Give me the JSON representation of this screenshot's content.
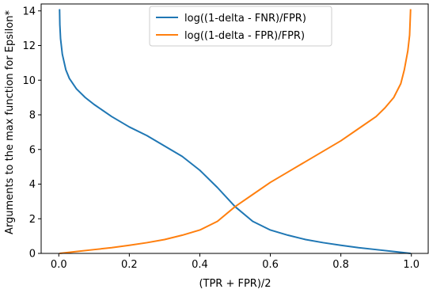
{
  "chart_data": {
    "type": "line",
    "title": "",
    "xlabel": "(TPR + FPR)/2",
    "ylabel": "Arguments to the max function for Epsilon*",
    "xlim": [
      -0.05,
      1.05
    ],
    "ylim": [
      0,
      14.4
    ],
    "xticks": [
      0.0,
      0.2,
      0.4,
      0.6,
      0.8,
      1.0
    ],
    "xtick_labels": [
      "0.0",
      "0.2",
      "0.4",
      "0.6",
      "0.8",
      "1.0"
    ],
    "yticks": [
      0,
      2,
      4,
      6,
      8,
      10,
      12,
      14
    ],
    "ytick_labels": [
      "0",
      "2",
      "4",
      "6",
      "8",
      "10",
      "12",
      "14"
    ],
    "grid": false,
    "legend_position": "top-center",
    "series": [
      {
        "name": "log((1-delta - FNR)/FPR)",
        "color": "#1f77b4",
        "points": [
          [
            0.0022,
            14.1
          ],
          [
            0.003,
            13.2
          ],
          [
            0.005,
            12.4
          ],
          [
            0.01,
            11.5
          ],
          [
            0.02,
            10.6
          ],
          [
            0.03,
            10.1
          ],
          [
            0.05,
            9.5
          ],
          [
            0.075,
            9.0
          ],
          [
            0.1,
            8.6
          ],
          [
            0.15,
            7.9
          ],
          [
            0.2,
            7.3
          ],
          [
            0.25,
            6.8
          ],
          [
            0.3,
            6.2
          ],
          [
            0.35,
            5.6
          ],
          [
            0.4,
            4.8
          ],
          [
            0.45,
            3.8
          ],
          [
            0.5,
            2.7
          ],
          [
            0.55,
            1.85
          ],
          [
            0.6,
            1.35
          ],
          [
            0.65,
            1.05
          ],
          [
            0.7,
            0.8
          ],
          [
            0.75,
            0.62
          ],
          [
            0.8,
            0.47
          ],
          [
            0.85,
            0.33
          ],
          [
            0.9,
            0.22
          ],
          [
            0.95,
            0.11
          ],
          [
            0.98,
            0.04
          ],
          [
            0.9978,
            0.0
          ]
        ]
      },
      {
        "name": "log((1-delta - FPR)/FPR)",
        "color": "#ff7f0e",
        "points": [
          [
            0.0022,
            0.0
          ],
          [
            0.02,
            0.04
          ],
          [
            0.05,
            0.11
          ],
          [
            0.1,
            0.22
          ],
          [
            0.15,
            0.33
          ],
          [
            0.2,
            0.47
          ],
          [
            0.25,
            0.62
          ],
          [
            0.3,
            0.8
          ],
          [
            0.35,
            1.05
          ],
          [
            0.4,
            1.35
          ],
          [
            0.45,
            1.85
          ],
          [
            0.5,
            2.7
          ],
          [
            0.55,
            3.4
          ],
          [
            0.6,
            4.1
          ],
          [
            0.65,
            4.7
          ],
          [
            0.7,
            5.3
          ],
          [
            0.75,
            5.9
          ],
          [
            0.8,
            6.5
          ],
          [
            0.85,
            7.2
          ],
          [
            0.9,
            7.9
          ],
          [
            0.925,
            8.4
          ],
          [
            0.95,
            9.0
          ],
          [
            0.97,
            9.8
          ],
          [
            0.98,
            10.6
          ],
          [
            0.99,
            11.7
          ],
          [
            0.995,
            12.6
          ],
          [
            0.9978,
            14.1
          ]
        ]
      }
    ]
  }
}
